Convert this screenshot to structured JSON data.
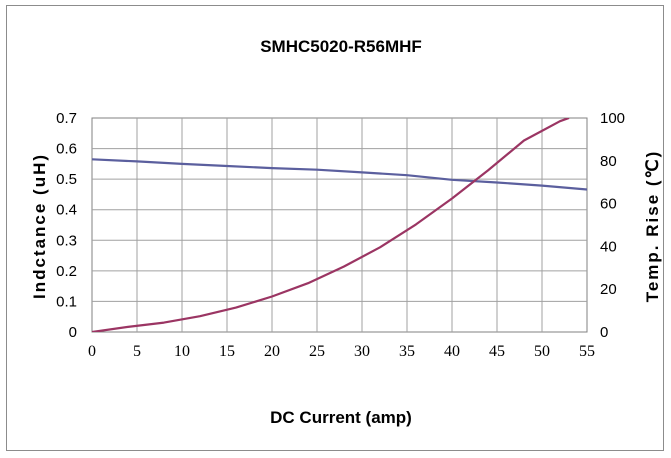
{
  "chart_data": {
    "type": "line",
    "title": "SMHC5020-R56MHF",
    "xlabel": "DC Current (amp)",
    "ylabel_left": "Indctance (uH)",
    "ylabel_right": "Temp. Rise (℃)",
    "x_ticks": [
      "0",
      "5",
      "10",
      "15",
      "20",
      "25",
      "30",
      "35",
      "40",
      "45",
      "50",
      "55"
    ],
    "y_left_ticks": [
      "0",
      "0.1",
      "0.2",
      "0.3",
      "0.4",
      "0.5",
      "0.6",
      "0.7"
    ],
    "y_right_ticks": [
      "0",
      "20",
      "40",
      "60",
      "80",
      "100"
    ],
    "xlim": [
      0,
      55
    ],
    "ylim_left": [
      0,
      0.7
    ],
    "ylim_right": [
      0,
      100
    ],
    "grid": true,
    "series": [
      {
        "axis": "left",
        "color": "#5b5f9e",
        "x": [
          0,
          5,
          10,
          15,
          20,
          25,
          30,
          35,
          40,
          45,
          50,
          55
        ],
        "y": [
          0.565,
          0.558,
          0.55,
          0.543,
          0.536,
          0.531,
          0.522,
          0.513,
          0.498,
          0.489,
          0.479,
          0.466
        ]
      },
      {
        "axis": "right",
        "color": "#9b3563",
        "x": [
          0,
          4,
          8,
          12,
          16,
          20,
          24,
          28,
          32,
          36,
          40,
          44,
          48,
          52,
          53
        ],
        "y": [
          0,
          2.4,
          4.4,
          7.4,
          11.4,
          16.6,
          22.8,
          30.6,
          39.6,
          50.3,
          62.4,
          75.5,
          89.5,
          98.5,
          100
        ]
      }
    ]
  }
}
